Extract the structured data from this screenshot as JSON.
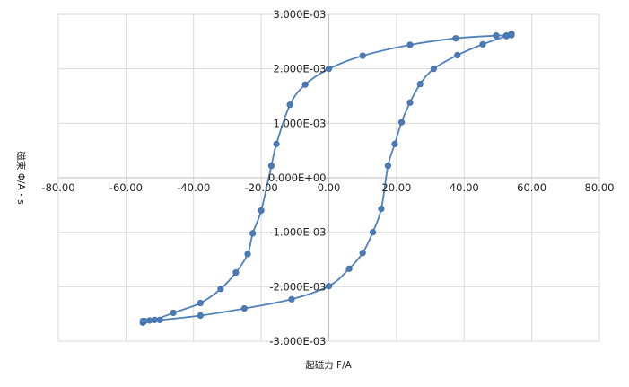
{
  "chart_data": {
    "type": "scatter",
    "title": "",
    "xlabel": "起磁力 F/A",
    "ylabel": "磁束 Φ/A・s",
    "xlim": [
      -80,
      80
    ],
    "ylim": [
      -0.003,
      0.003
    ],
    "x_ticks": [
      "-80.00",
      "-60.00",
      "-40.00",
      "-20.00",
      "0.00",
      "20.00",
      "40.00",
      "60.00",
      "80.00"
    ],
    "y_ticks": [
      "-3.000E-03",
      "-2.000E-03",
      "-1.000E-03",
      "0.000E+00",
      "1.000E-03",
      "2.000E-03",
      "3.000E-03"
    ],
    "grid": true,
    "colors": {
      "series": "#4f81bd",
      "marker": "#4a7ab7",
      "grid": "#d9d9d9"
    },
    "series": [
      {
        "points": [
          [
            54.0,
            0.00264
          ],
          [
            52.5,
            0.00261
          ],
          [
            49.5,
            0.00261
          ],
          [
            37.5,
            0.00256
          ],
          [
            24.0,
            0.00244
          ],
          [
            10.0,
            0.00224
          ],
          [
            0.0,
            0.002
          ],
          [
            -7.0,
            0.00171
          ],
          [
            -11.5,
            0.00134
          ],
          [
            -15.5,
            0.00062
          ],
          [
            -17.0,
            0.00022
          ],
          [
            -20.0,
            -0.0006
          ],
          [
            -22.5,
            -0.00102
          ],
          [
            -24.0,
            -0.0014
          ],
          [
            -27.5,
            -0.00174
          ],
          [
            -32.0,
            -0.00204
          ],
          [
            -38.0,
            -0.0023
          ],
          [
            -46.0,
            -0.00248
          ],
          [
            -51.5,
            -0.00261
          ],
          [
            -53.0,
            -0.00262
          ],
          [
            -54.5,
            -0.00263
          ],
          [
            -55.0,
            -0.00266
          ]
        ]
      },
      {
        "points": [
          [
            -55.0,
            -0.00263
          ],
          [
            -50.0,
            -0.00261
          ],
          [
            -38.0,
            -0.00253
          ],
          [
            -25.0,
            -0.0024
          ],
          [
            -11.0,
            -0.00223
          ],
          [
            0.0,
            -0.00199
          ],
          [
            6.0,
            -0.00167
          ],
          [
            10.0,
            -0.00138
          ],
          [
            13.0,
            -0.001
          ],
          [
            15.5,
            -0.00057
          ],
          [
            17.5,
            0.00022
          ],
          [
            19.5,
            0.00062
          ],
          [
            21.5,
            0.00102
          ],
          [
            24.0,
            0.00138
          ],
          [
            27.0,
            0.00172
          ],
          [
            31.0,
            0.002
          ],
          [
            38.0,
            0.00225
          ],
          [
            45.5,
            0.00245
          ],
          [
            52.5,
            0.0026
          ],
          [
            54.0,
            0.00262
          ]
        ]
      }
    ]
  }
}
